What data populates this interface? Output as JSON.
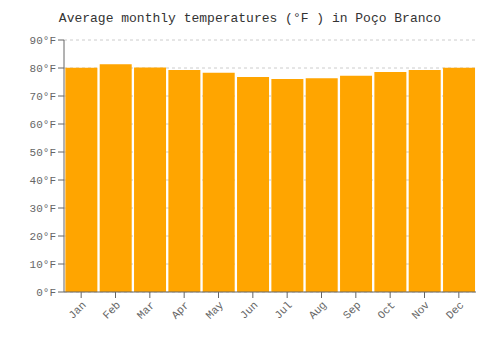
{
  "chart_data": {
    "type": "bar",
    "title": "Average monthly temperatures (°F ) in Poço Branco",
    "categories": [
      "Jan",
      "Feb",
      "Mar",
      "Apr",
      "May",
      "Jun",
      "Jul",
      "Aug",
      "Sep",
      "Oct",
      "Nov",
      "Dec"
    ],
    "values": [
      80.1,
      81.3,
      80.2,
      79.3,
      78.3,
      76.8,
      76.1,
      76.3,
      77.2,
      78.6,
      79.3,
      80.1
    ],
    "color": "#FFA500",
    "ylim": [
      0,
      90
    ],
    "yticks": [
      {
        "value": 0,
        "label": "0°F"
      },
      {
        "value": 10,
        "label": "10°F"
      },
      {
        "value": 20,
        "label": "20°F"
      },
      {
        "value": 30,
        "label": "30°F"
      },
      {
        "value": 40,
        "label": "40°F"
      },
      {
        "value": 50,
        "label": "50°F"
      },
      {
        "value": 60,
        "label": "60°F"
      },
      {
        "value": 70,
        "label": "70°F"
      },
      {
        "value": 80,
        "label": "80°F"
      },
      {
        "value": 90,
        "label": "90°F"
      }
    ],
    "grid": true
  }
}
